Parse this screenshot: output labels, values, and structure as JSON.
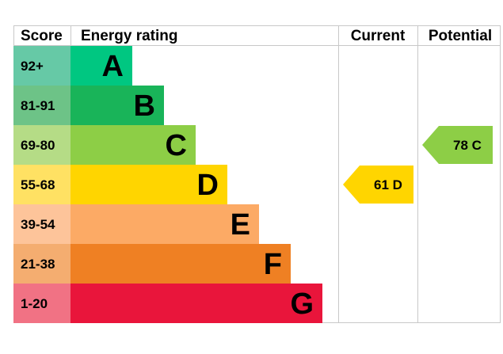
{
  "headers": {
    "score": "Score",
    "rating": "Energy rating",
    "current": "Current",
    "potential": "Potential"
  },
  "chart_data": {
    "type": "bar",
    "categories": [
      "A",
      "B",
      "C",
      "D",
      "E",
      "F",
      "G"
    ],
    "score_ranges": [
      "92+",
      "81-91",
      "69-80",
      "55-68",
      "39-54",
      "21-38",
      "1-20"
    ],
    "bar_lengths": [
      1,
      2,
      3,
      4,
      5,
      6,
      7
    ],
    "bar_colors": [
      "#00c781",
      "#19b459",
      "#8dce46",
      "#ffd500",
      "#fcaa65",
      "#ef8023",
      "#e9153b"
    ],
    "score_colors": [
      "#66c9a6",
      "#6dc387",
      "#b5dc86",
      "#ffe163",
      "#fdc49a",
      "#f4ad70",
      "#f17284"
    ],
    "current": {
      "value": 61,
      "band": "D",
      "label": "61 D",
      "color": "#ffd500"
    },
    "potential": {
      "value": 78,
      "band": "C",
      "label": "78 C",
      "color": "#8dce46"
    }
  }
}
